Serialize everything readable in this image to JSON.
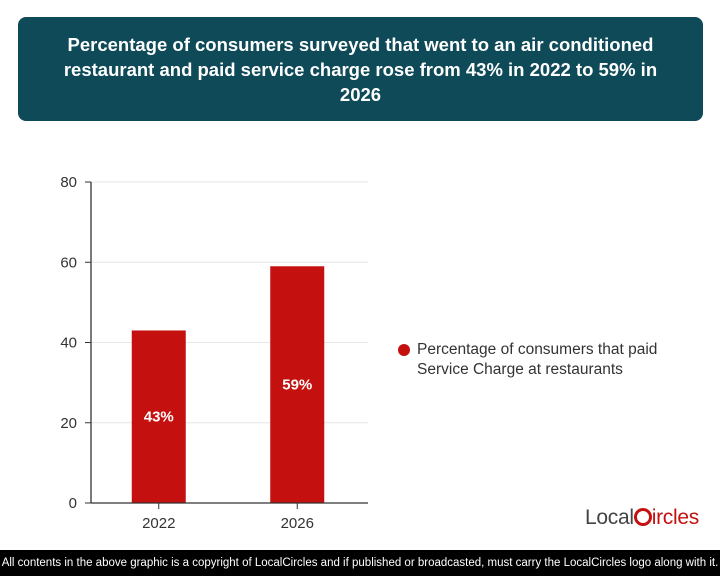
{
  "title": "Percentage of consumers surveyed that went to an air conditioned restaurant and paid service charge rose from 43% in 2022 to 59% in 2026",
  "chart_data": {
    "type": "bar",
    "categories": [
      "2022",
      "2026"
    ],
    "series": [
      {
        "name": "Percentage of consumers that paid Service Charge at restaurants",
        "values": [
          43,
          59
        ],
        "data_labels": [
          "43%",
          "59%"
        ],
        "color": "#c4110f"
      }
    ],
    "ylim": [
      0,
      80
    ],
    "yticks": [
      0,
      20,
      40,
      60,
      80
    ],
    "grid": true,
    "legend_position": "right"
  },
  "logo": {
    "text_dark": "Local",
    "text_red": "ircles"
  },
  "footer": "All contents in the above graphic is a copyright of LocalCircles and if published or broadcasted, must carry the LocalCircles logo along with it."
}
